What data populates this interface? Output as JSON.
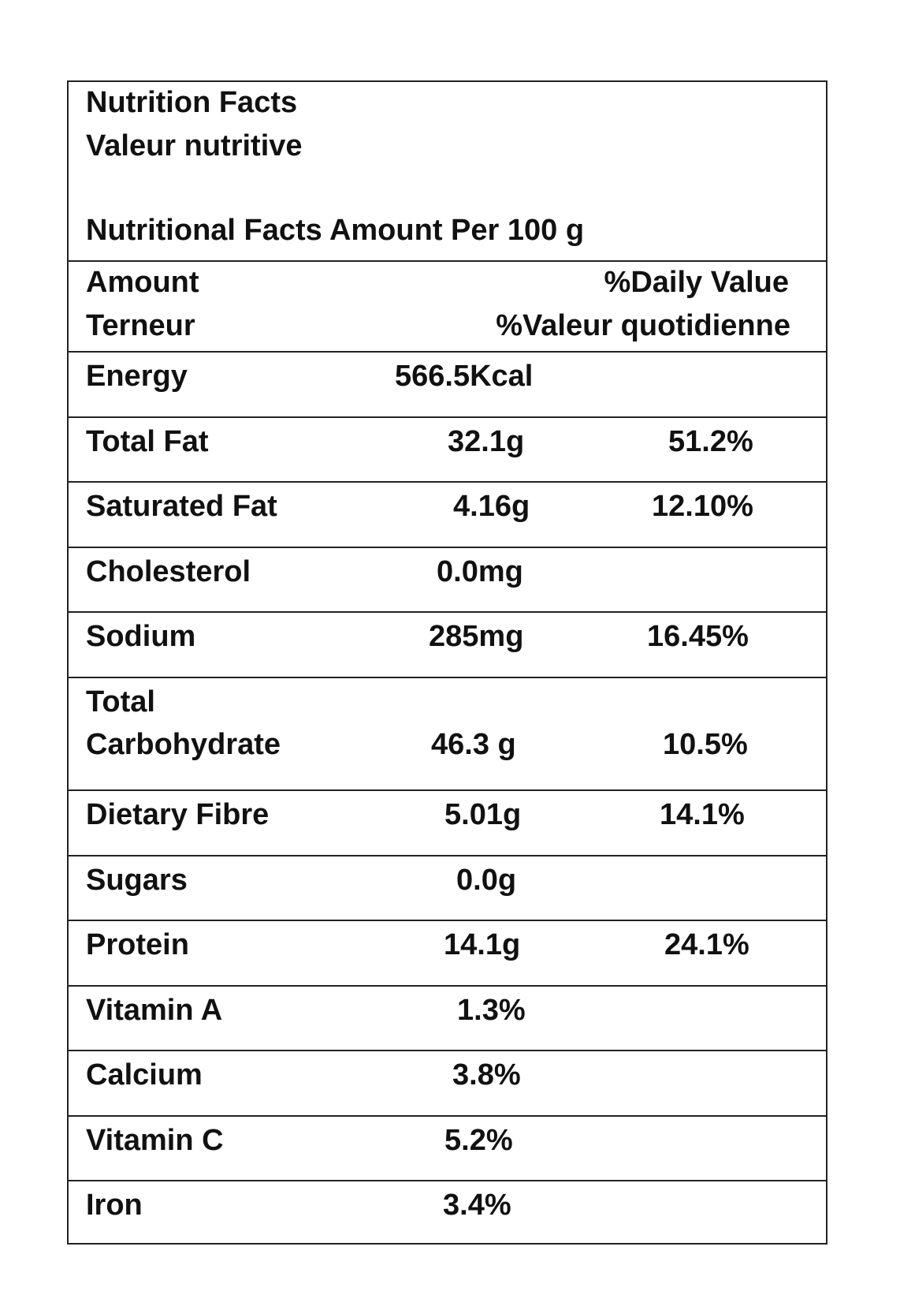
{
  "header": {
    "title_en": "Nutrition Facts",
    "title_fr": "Valeur nutritive",
    "serving": "Nutritional Facts Amount Per 100 g"
  },
  "columns": {
    "amount_en": "Amount",
    "amount_fr": "Terneur",
    "dv_en": "%Daily Value",
    "dv_fr": "%Valeur quotidienne"
  },
  "rows": [
    {
      "name": "Energy",
      "amount": "566.5Kcal",
      "dv": ""
    },
    {
      "name": "Total Fat",
      "amount": "32.1g",
      "dv": "51.2%"
    },
    {
      "name": "Saturated Fat",
      "amount": "4.16g",
      "dv": "12.10%"
    },
    {
      "name": "Cholesterol",
      "amount": "0.0mg",
      "dv": ""
    },
    {
      "name": "Sodium",
      "amount": "285mg",
      "dv": "16.45%"
    },
    {
      "name_line1": "Total",
      "name_line2": "Carbohydrate",
      "amount": "46.3 g",
      "dv": "10.5%"
    },
    {
      "name": "Dietary Fibre",
      "amount": "5.01g",
      "dv": "14.1%"
    },
    {
      "name": "Sugars",
      "amount": "0.0g",
      "dv": ""
    },
    {
      "name": "Protein",
      "amount": "14.1g",
      "dv": "24.1%"
    },
    {
      "name": "Vitamin A",
      "amount": "1.3%",
      "dv": ""
    },
    {
      "name": "Calcium",
      "amount": "3.8%",
      "dv": ""
    },
    {
      "name": "Vitamin C",
      "amount": "5.2%",
      "dv": ""
    },
    {
      "name": "Iron",
      "amount": "3.4%",
      "dv": ""
    }
  ]
}
